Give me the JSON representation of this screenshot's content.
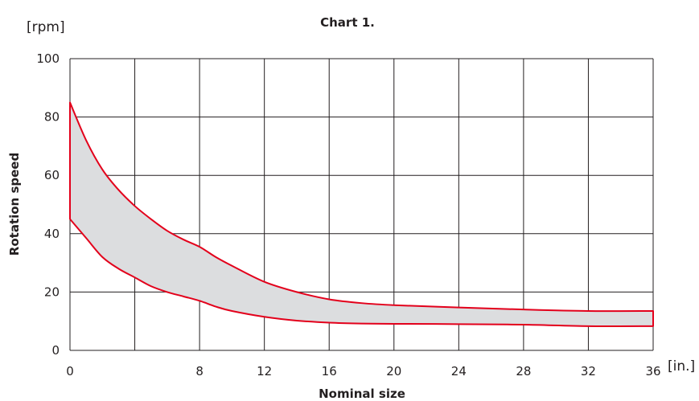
{
  "chart_data": {
    "type": "area",
    "title": "Chart 1.",
    "xlabel": "Nominal size",
    "ylabel": "Rotation speed",
    "x_unit": "[in.]",
    "y_unit": "[rpm]",
    "xlim": [
      0,
      36
    ],
    "ylim": [
      0,
      100
    ],
    "x_ticks": [
      0,
      4,
      8,
      12,
      16,
      20,
      24,
      28,
      32,
      36
    ],
    "x_tick_labels": [
      "0",
      "",
      "8",
      "12",
      "16",
      "20",
      "24",
      "28",
      "32",
      "36"
    ],
    "y_ticks": [
      0,
      20,
      40,
      60,
      80,
      100
    ],
    "y_tick_labels": [
      "0",
      "20",
      "40",
      "60",
      "80",
      "100"
    ],
    "grid": true,
    "band_fill_color": "#dcdddf",
    "line_color": "#e3001b",
    "series": [
      {
        "role": "upper",
        "x": [
          0,
          1,
          2,
          3,
          4,
          5,
          6,
          7,
          8,
          9,
          10,
          12,
          14,
          16,
          18,
          20,
          24,
          28,
          32,
          36
        ],
        "values": [
          85,
          72,
          62,
          55,
          49.5,
          45,
          41,
          38,
          35.5,
          32,
          29,
          23.5,
          20,
          17.5,
          16.2,
          15.5,
          14.7,
          14,
          13.5,
          13.5
        ]
      },
      {
        "role": "lower",
        "x": [
          0,
          1,
          2,
          3,
          4,
          5,
          6,
          7,
          8,
          9,
          10,
          12,
          14,
          16,
          18,
          20,
          24,
          28,
          32,
          36
        ],
        "values": [
          45,
          38.5,
          32,
          28,
          25,
          22,
          20,
          18.5,
          17,
          15,
          13.5,
          11.5,
          10.2,
          9.5,
          9.2,
          9.1,
          9,
          8.8,
          8.3,
          8.3
        ]
      }
    ]
  }
}
